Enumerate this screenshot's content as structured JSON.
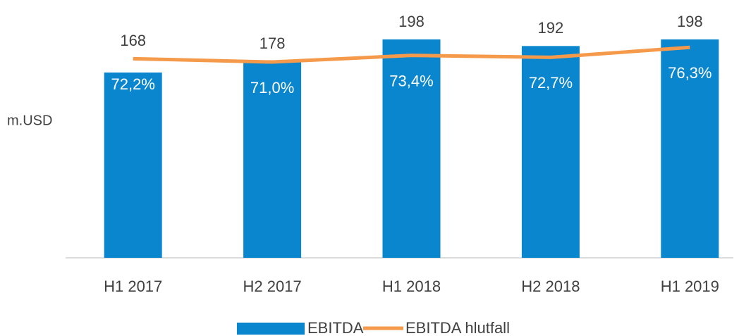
{
  "chart_data": {
    "type": "bar_line",
    "y_label": "m.USD",
    "categories": [
      "H1 2017",
      "H2 2017",
      "H1 2018",
      "H2 2018",
      "H1 2019"
    ],
    "series": [
      {
        "name": "EBITDA",
        "type": "bar",
        "color": "#0a86cf",
        "values": [
          168,
          178,
          198,
          192,
          198
        ]
      },
      {
        "name": "EBITDA hlutfall",
        "type": "line",
        "axis": "y2",
        "color": "#f59a4a",
        "values": [
          72.2,
          71.0,
          73.4,
          72.7,
          76.3
        ],
        "value_labels": [
          "72,2%",
          "71,0%",
          "73,4%",
          "72,7%",
          "76,3%"
        ]
      }
    ],
    "ylim": [
      0,
      220
    ],
    "y2lim": [
      0,
      88
    ],
    "legend": "bottom"
  }
}
